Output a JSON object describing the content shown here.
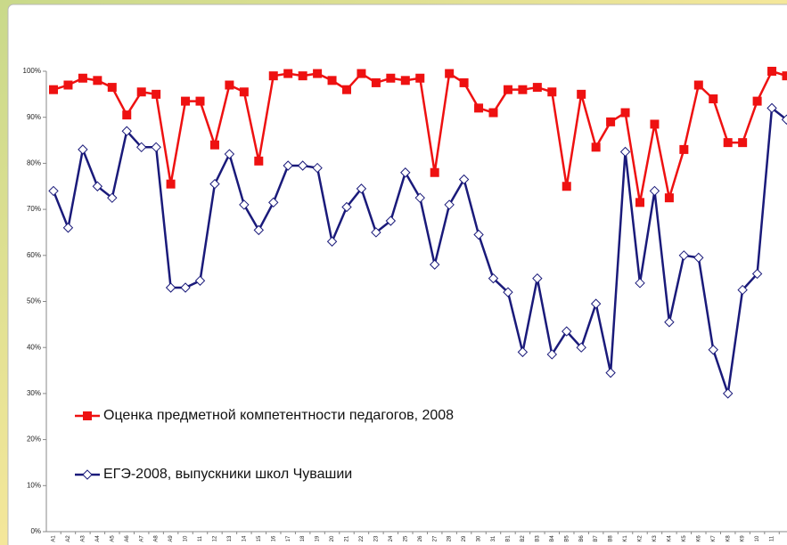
{
  "chart_data": {
    "type": "line",
    "categories": [
      "A1",
      "A2",
      "A3",
      "A4",
      "A5",
      "A6",
      "A7",
      "A8",
      "A9",
      "10",
      "11",
      "12",
      "13",
      "14",
      "15",
      "16",
      "17",
      "18",
      "19",
      "20",
      "21",
      "22",
      "23",
      "24",
      "25",
      "26",
      "27",
      "28",
      "29",
      "30",
      "31",
      "B1",
      "B2",
      "B3",
      "B4",
      "B5",
      "B6",
      "B7",
      "B8",
      "K1",
      "K2",
      "K3",
      "K4",
      "K5",
      "K6",
      "K7",
      "K8",
      "K9",
      "10",
      "11",
      null
    ],
    "series": [
      {
        "name": "Оценка предметной компетентности педагогов, 2008",
        "color": "#ee1111",
        "marker": "square",
        "values": [
          96,
          97,
          98.5,
          98,
          96.5,
          90.5,
          95.5,
          95,
          75.5,
          93.5,
          93.5,
          84,
          97,
          95.5,
          80.5,
          99,
          99.5,
          99,
          99.5,
          98,
          96,
          99.5,
          97.5,
          98.5,
          98,
          98.5,
          78,
          99.5,
          97.5,
          92,
          91,
          96,
          96,
          96.5,
          95.5,
          75,
          95,
          83.5,
          89,
          91,
          71.5,
          88.5,
          72.5,
          83,
          97,
          94,
          84.5,
          84.5,
          93.5,
          100,
          99
        ]
      },
      {
        "name": "ЕГЭ-2008, выпускники школ Чувашии",
        "color": "#1a1a7a",
        "marker": "diamond",
        "values": [
          74,
          66,
          83,
          75,
          72.5,
          87,
          83.5,
          83.5,
          53,
          53,
          54.5,
          75.5,
          82,
          71,
          65.5,
          71.5,
          79.5,
          79.5,
          79,
          63,
          70.5,
          74.5,
          65,
          67.5,
          78,
          72.5,
          58,
          71,
          76.5,
          64.5,
          55,
          52,
          39,
          55,
          38.5,
          43.5,
          40,
          49.5,
          34.5,
          82.5,
          54,
          74,
          45.5,
          60,
          59.5,
          39.5,
          30,
          52.5,
          56,
          92,
          89.5
        ]
      }
    ],
    "ylim": [
      0,
      100
    ],
    "yticks": [
      {
        "value": 0,
        "label": "0%"
      },
      {
        "value": 10,
        "label": "10%"
      },
      {
        "value": 20,
        "label": "20%"
      },
      {
        "value": 30,
        "label": "30%"
      },
      {
        "value": 40,
        "label": "40%"
      },
      {
        "value": 50,
        "label": "50%"
      },
      {
        "value": 60,
        "label": "60%"
      },
      {
        "value": 70,
        "label": "70%"
      },
      {
        "value": 80,
        "label": "80%"
      },
      {
        "value": 90,
        "label": "90%"
      },
      {
        "value": 100,
        "label": "100%"
      }
    ],
    "grid": false
  }
}
